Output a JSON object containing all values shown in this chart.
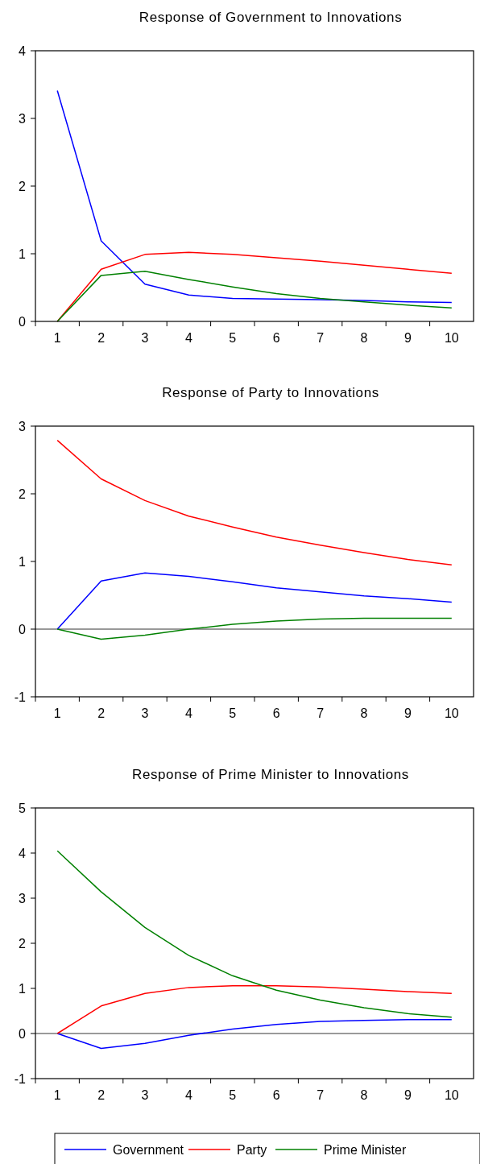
{
  "chart_data": [
    {
      "type": "line",
      "title": "Response of Government to Innovations",
      "categories": [
        "1",
        "2",
        "3",
        "4",
        "5",
        "6",
        "7",
        "8",
        "9",
        "10"
      ],
      "ylim": [
        0,
        4
      ],
      "yticks": [
        0,
        1,
        2,
        3,
        4
      ],
      "grid": false,
      "legend": false,
      "series": [
        {
          "color": "#0000ff",
          "values": [
            3.41,
            1.19,
            0.55,
            0.39,
            0.34,
            0.33,
            0.32,
            0.31,
            0.29,
            0.28
          ]
        },
        {
          "color": "#ff0000",
          "values": [
            0,
            0.77,
            0.99,
            1.02,
            0.99,
            0.94,
            0.89,
            0.83,
            0.77,
            0.71
          ]
        },
        {
          "color": "#008000",
          "values": [
            0,
            0.68,
            0.74,
            0.62,
            0.51,
            0.41,
            0.34,
            0.29,
            0.24,
            0.2
          ]
        }
      ]
    },
    {
      "type": "line",
      "title": "Response of Party to Innovations",
      "categories": [
        "1",
        "2",
        "3",
        "4",
        "5",
        "6",
        "7",
        "8",
        "9",
        "10"
      ],
      "ylim": [
        -1,
        3
      ],
      "yticks": [
        -1,
        0,
        1,
        2,
        3
      ],
      "grid": false,
      "legend": false,
      "ref_lines": [
        {
          "axis": "y",
          "value": 0,
          "color": "#000000"
        }
      ],
      "series": [
        {
          "color": "#0000ff",
          "values": [
            0,
            0.71,
            0.83,
            0.78,
            0.7,
            0.61,
            0.55,
            0.49,
            0.45,
            0.4
          ]
        },
        {
          "color": "#ff0000",
          "values": [
            2.79,
            2.22,
            1.9,
            1.67,
            1.51,
            1.36,
            1.24,
            1.13,
            1.03,
            0.95
          ]
        },
        {
          "color": "#008000",
          "values": [
            0,
            -0.15,
            -0.09,
            0,
            0.07,
            0.12,
            0.15,
            0.16,
            0.16,
            0.16
          ]
        }
      ]
    },
    {
      "type": "line",
      "title": "Response of Prime Minister to Innovations",
      "categories": [
        "1",
        "2",
        "3",
        "4",
        "5",
        "6",
        "7",
        "8",
        "9",
        "10"
      ],
      "ylim": [
        -1,
        5
      ],
      "yticks": [
        -1,
        0,
        1,
        2,
        3,
        4,
        5
      ],
      "grid": false,
      "legend": "bottom",
      "ref_lines": [
        {
          "axis": "y",
          "value": 0,
          "color": "#000000"
        }
      ],
      "series": [
        {
          "name": "Government",
          "color": "#0000ff",
          "values": [
            0,
            -0.33,
            -0.22,
            -0.04,
            0.1,
            0.2,
            0.27,
            0.29,
            0.31,
            0.31
          ]
        },
        {
          "name": "Party",
          "color": "#ff0000",
          "values": [
            0,
            0.61,
            0.89,
            1.02,
            1.06,
            1.06,
            1.03,
            0.98,
            0.93,
            0.89
          ]
        },
        {
          "name": "Prime Minister",
          "color": "#008000",
          "values": [
            4.05,
            3.14,
            2.35,
            1.73,
            1.28,
            0.96,
            0.74,
            0.57,
            0.44,
            0.36
          ]
        }
      ]
    }
  ]
}
